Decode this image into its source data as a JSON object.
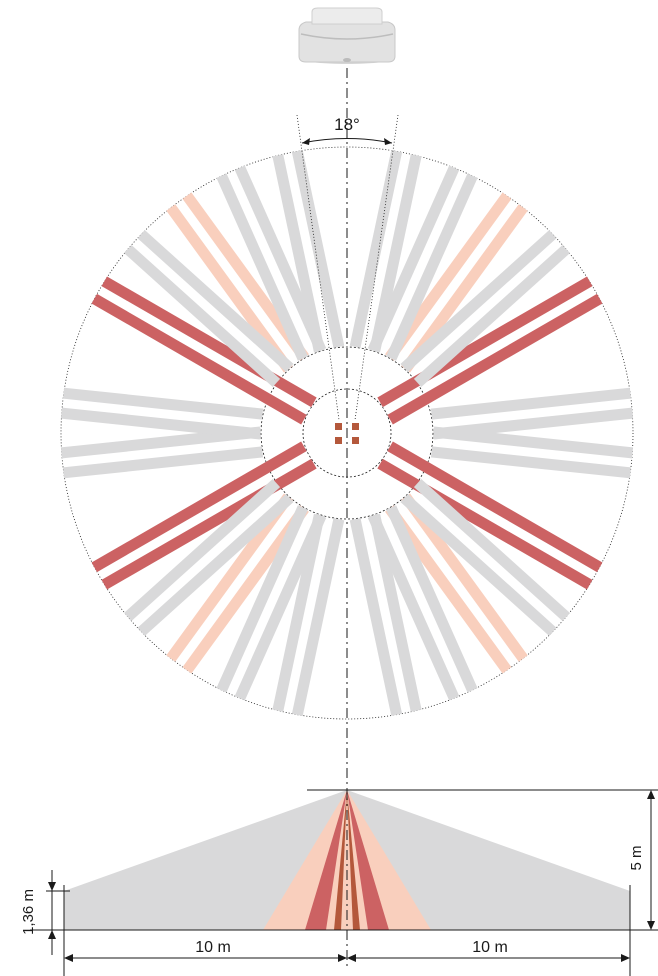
{
  "labels": {
    "angle": "18°",
    "height": "5 m",
    "mount_low": "1,36 m",
    "radius_left": "10 m",
    "radius_right": "10 m"
  },
  "colors": {
    "outer_zone": "#d9d9da",
    "middle_zone": "#f9cfbd",
    "inner_zone": "#cc6263",
    "core_zone": "#b4583b",
    "line": "#1a1a1a"
  },
  "icons": {
    "sensor": "ceiling-motion-sensor-icon"
  }
}
